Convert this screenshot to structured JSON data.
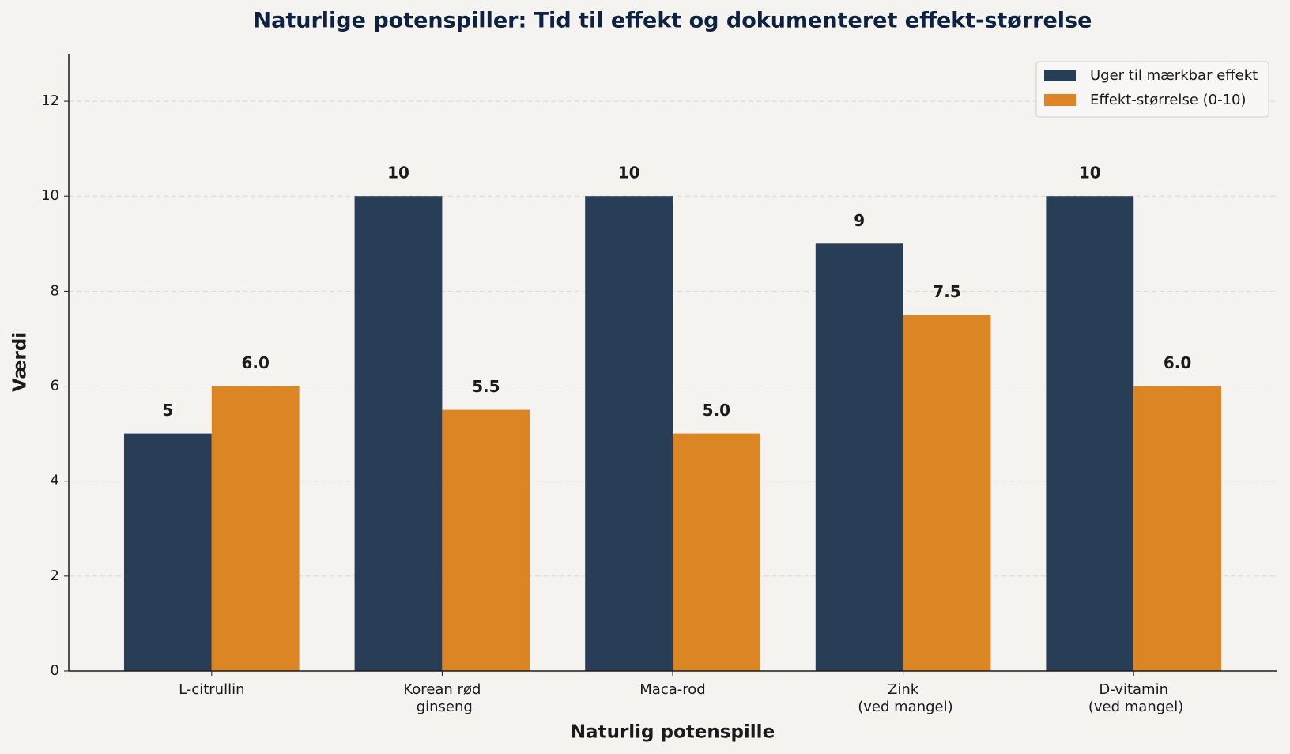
{
  "chart_data": {
    "type": "bar",
    "title": "Naturlige potenspiller: Tid til effekt og dokumenteret effekt-størrelse",
    "xlabel": "Naturlig potenspille",
    "ylabel": "Værdi",
    "categories": [
      "L-citrullin",
      "Korean rød\nginseng",
      "Maca-rod",
      "Zink\n(ved mangel)",
      "D-vitamin\n(ved mangel)"
    ],
    "series": [
      {
        "name": "Uger til mærkbar effekt",
        "color": "#283d56",
        "values": [
          5,
          10,
          10,
          9,
          10
        ]
      },
      {
        "name": "Effekt-størrelse (0-10)",
        "color": "#db8524",
        "values": [
          6,
          5.5,
          5,
          7.5,
          6
        ],
        "value_labels": [
          "6.0",
          "5.5",
          "5.0",
          "7.5",
          "6.0"
        ]
      }
    ],
    "ylim": [
      0,
      13
    ],
    "yticks": [
      0,
      2,
      4,
      6,
      8,
      10,
      12
    ],
    "grid": true,
    "legend": "upper right"
  }
}
